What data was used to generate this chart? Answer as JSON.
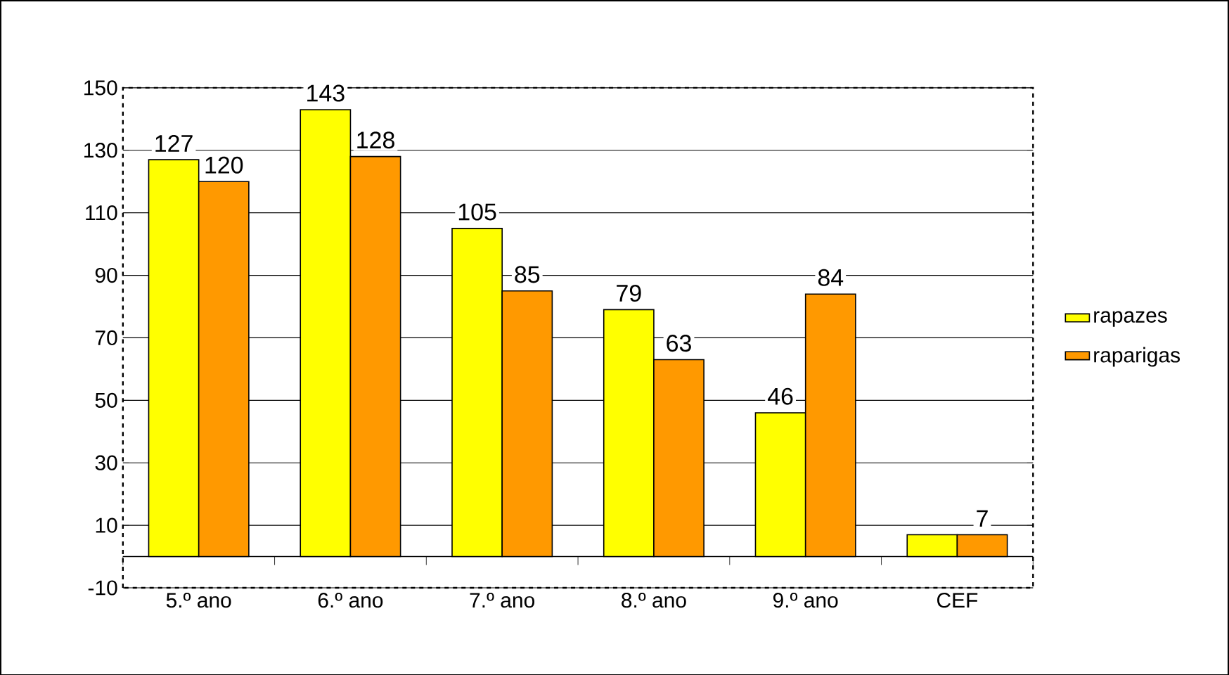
{
  "chart_data": {
    "type": "bar",
    "categories": [
      "5.º ano",
      "6.º ano",
      "7.º ano",
      "8.º ano",
      "9.º ano",
      "CEF"
    ],
    "series": [
      {
        "name": "rapazes",
        "color": "#ffff00",
        "values": [
          127,
          143,
          105,
          79,
          46,
          7
        ],
        "value_labels": [
          "127",
          "143",
          "105",
          "79",
          "46",
          null
        ]
      },
      {
        "name": "raparigas",
        "color": "#ff9900",
        "values": [
          120,
          128,
          85,
          63,
          84,
          7
        ],
        "value_labels": [
          "120",
          "128",
          "85",
          "63",
          "84",
          "7"
        ]
      }
    ],
    "ylim": [
      -10,
      150
    ],
    "yticks": [
      -10,
      10,
      30,
      50,
      70,
      90,
      110,
      130,
      150
    ],
    "grid": "y",
    "legend": "right"
  }
}
